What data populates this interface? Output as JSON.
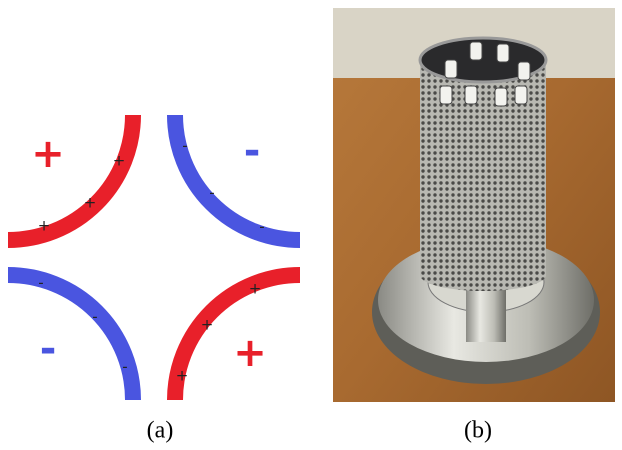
{
  "panels": [
    {
      "label": "(a)"
    },
    {
      "label": "(b)"
    }
  ],
  "diagram": {
    "quadrant_signs": [
      "+",
      "-",
      "-",
      "+"
    ],
    "electrode_signs": [
      [
        "+",
        "+",
        "+"
      ],
      [
        "-",
        "-",
        "-"
      ],
      [
        "-",
        "-",
        "-"
      ],
      [
        "+",
        "+",
        "+"
      ]
    ]
  }
}
